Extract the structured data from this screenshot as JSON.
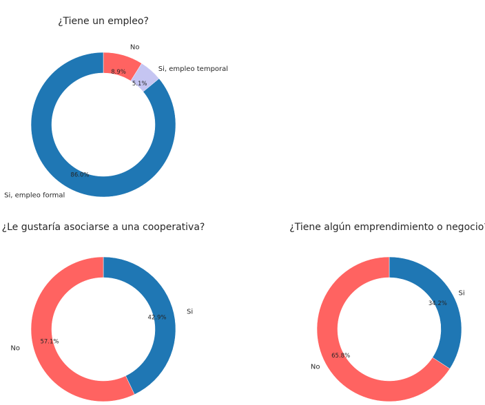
{
  "chart_data": [
    {
      "type": "pie",
      "donut": true,
      "title": "¿Tiene un empleo?",
      "slices": [
        {
          "label": "No",
          "value": 8.9,
          "pct_label": "8.9%",
          "color": "#ff6361"
        },
        {
          "label": "Si, empleo temporal",
          "value": 5.1,
          "pct_label": "5.1%",
          "color": "#c5c5f2"
        },
        {
          "label": "Si, empleo formal",
          "value": 86.0,
          "pct_label": "86.0%",
          "color": "#1f77b4"
        }
      ]
    },
    {
      "type": "pie",
      "donut": true,
      "title": "¿Le gustaría asociarse a una cooperativa?",
      "slices": [
        {
          "label": "Si",
          "value": 42.9,
          "pct_label": "42.9%",
          "color": "#1f77b4"
        },
        {
          "label": "No",
          "value": 57.1,
          "pct_label": "57.1%",
          "color": "#ff6361"
        }
      ]
    },
    {
      "type": "pie",
      "donut": true,
      "title": "¿Tiene algún emprendimiento o negocio?",
      "slices": [
        {
          "label": "Si",
          "value": 34.2,
          "pct_label": "34.2%",
          "color": "#1f77b4"
        },
        {
          "label": "No",
          "value": 65.8,
          "pct_label": "65.8%",
          "color": "#ff6361"
        }
      ]
    }
  ]
}
